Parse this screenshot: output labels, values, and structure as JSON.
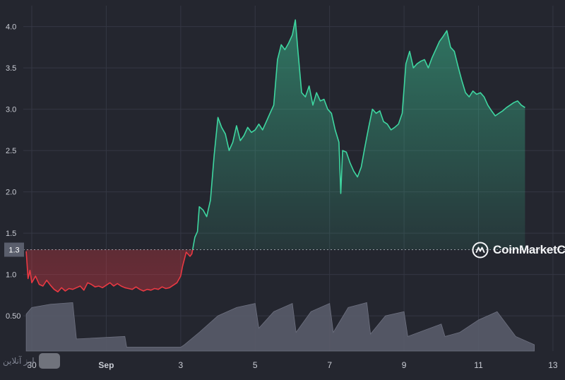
{
  "chart_data": {
    "type": "area",
    "title": "",
    "xlabel": "",
    "ylabel": "",
    "ylim": [
      0.38,
      4.25
    ],
    "x_ticks": [
      {
        "t": 0.0,
        "label": "30"
      },
      {
        "t": 2.0,
        "label": "Sep"
      },
      {
        "t": 4.0,
        "label": "3"
      },
      {
        "t": 6.0,
        "label": "5"
      },
      {
        "t": 8.0,
        "label": "7"
      },
      {
        "t": 10.0,
        "label": "9"
      },
      {
        "t": 12.0,
        "label": "11"
      },
      {
        "t": 14.0,
        "label": "13"
      }
    ],
    "y_ticks": [
      {
        "v": 4.0,
        "label": "4.0"
      },
      {
        "v": 3.5,
        "label": "3.5"
      },
      {
        "v": 3.0,
        "label": "3.0"
      },
      {
        "v": 2.5,
        "label": "2.5"
      },
      {
        "v": 2.0,
        "label": "2.0"
      },
      {
        "v": 1.5,
        "label": "1.5"
      },
      {
        "v": 1.0,
        "label": "1.0"
      },
      {
        "v": 0.5,
        "label": "0.50"
      }
    ],
    "reference_line": {
      "value": 1.3,
      "label": "1.3"
    },
    "grid": true,
    "colors": {
      "up": "#3ed6a0",
      "down": "#ea3943",
      "volume": "#5c5f6d",
      "background": "#24262f",
      "grid": "#343743",
      "text": "#c9ccd4"
    },
    "series": [
      {
        "values_kind": "price",
        "points": [
          [
            -0.15,
            1.28
          ],
          [
            -0.1,
            0.95
          ],
          [
            -0.05,
            1.05
          ],
          [
            0.0,
            0.9
          ],
          [
            0.1,
            0.98
          ],
          [
            0.2,
            0.88
          ],
          [
            0.3,
            0.86
          ],
          [
            0.4,
            0.93
          ],
          [
            0.5,
            0.87
          ],
          [
            0.6,
            0.82
          ],
          [
            0.7,
            0.79
          ],
          [
            0.8,
            0.84
          ],
          [
            0.9,
            0.8
          ],
          [
            1.0,
            0.83
          ],
          [
            1.1,
            0.82
          ],
          [
            1.2,
            0.84
          ],
          [
            1.3,
            0.86
          ],
          [
            1.4,
            0.81
          ],
          [
            1.5,
            0.9
          ],
          [
            1.6,
            0.88
          ],
          [
            1.7,
            0.85
          ],
          [
            1.8,
            0.86
          ],
          [
            1.9,
            0.84
          ],
          [
            2.0,
            0.87
          ],
          [
            2.1,
            0.9
          ],
          [
            2.2,
            0.86
          ],
          [
            2.3,
            0.89
          ],
          [
            2.4,
            0.86
          ],
          [
            2.5,
            0.84
          ],
          [
            2.6,
            0.83
          ],
          [
            2.7,
            0.82
          ],
          [
            2.8,
            0.85
          ],
          [
            2.9,
            0.82
          ],
          [
            3.0,
            0.8
          ],
          [
            3.1,
            0.82
          ],
          [
            3.2,
            0.81
          ],
          [
            3.3,
            0.83
          ],
          [
            3.4,
            0.82
          ],
          [
            3.5,
            0.85
          ],
          [
            3.6,
            0.83
          ],
          [
            3.7,
            0.84
          ],
          [
            3.8,
            0.87
          ],
          [
            3.9,
            0.9
          ],
          [
            4.0,
            0.98
          ],
          [
            4.05,
            1.1
          ],
          [
            4.15,
            1.27
          ],
          [
            4.25,
            1.22
          ],
          [
            4.3,
            1.25
          ],
          [
            4.38,
            1.45
          ],
          [
            4.45,
            1.52
          ],
          [
            4.5,
            1.82
          ],
          [
            4.6,
            1.78
          ],
          [
            4.7,
            1.7
          ],
          [
            4.8,
            1.9
          ],
          [
            4.9,
            2.45
          ],
          [
            5.0,
            2.9
          ],
          [
            5.1,
            2.78
          ],
          [
            5.2,
            2.7
          ],
          [
            5.3,
            2.5
          ],
          [
            5.4,
            2.6
          ],
          [
            5.5,
            2.8
          ],
          [
            5.6,
            2.62
          ],
          [
            5.7,
            2.68
          ],
          [
            5.8,
            2.78
          ],
          [
            5.9,
            2.72
          ],
          [
            6.0,
            2.75
          ],
          [
            6.1,
            2.82
          ],
          [
            6.2,
            2.75
          ],
          [
            6.3,
            2.85
          ],
          [
            6.4,
            2.95
          ],
          [
            6.5,
            3.05
          ],
          [
            6.6,
            3.6
          ],
          [
            6.7,
            3.78
          ],
          [
            6.8,
            3.72
          ],
          [
            6.9,
            3.8
          ],
          [
            7.0,
            3.9
          ],
          [
            7.08,
            4.08
          ],
          [
            7.15,
            3.7
          ],
          [
            7.25,
            3.2
          ],
          [
            7.35,
            3.15
          ],
          [
            7.45,
            3.28
          ],
          [
            7.55,
            3.05
          ],
          [
            7.65,
            3.2
          ],
          [
            7.75,
            3.1
          ],
          [
            7.85,
            3.12
          ],
          [
            7.95,
            3.0
          ],
          [
            8.05,
            2.95
          ],
          [
            8.15,
            2.75
          ],
          [
            8.25,
            2.6
          ],
          [
            8.3,
            1.98
          ],
          [
            8.35,
            2.5
          ],
          [
            8.45,
            2.48
          ],
          [
            8.55,
            2.35
          ],
          [
            8.65,
            2.25
          ],
          [
            8.75,
            2.18
          ],
          [
            8.85,
            2.3
          ],
          [
            8.95,
            2.55
          ],
          [
            9.05,
            2.78
          ],
          [
            9.15,
            3.0
          ],
          [
            9.25,
            2.95
          ],
          [
            9.35,
            2.98
          ],
          [
            9.45,
            2.85
          ],
          [
            9.55,
            2.82
          ],
          [
            9.65,
            2.75
          ],
          [
            9.75,
            2.78
          ],
          [
            9.85,
            2.82
          ],
          [
            9.95,
            2.95
          ],
          [
            10.05,
            3.55
          ],
          [
            10.15,
            3.7
          ],
          [
            10.25,
            3.5
          ],
          [
            10.35,
            3.55
          ],
          [
            10.45,
            3.58
          ],
          [
            10.55,
            3.6
          ],
          [
            10.65,
            3.5
          ],
          [
            10.75,
            3.62
          ],
          [
            10.85,
            3.72
          ],
          [
            10.95,
            3.82
          ],
          [
            11.05,
            3.88
          ],
          [
            11.15,
            3.95
          ],
          [
            11.25,
            3.75
          ],
          [
            11.35,
            3.7
          ],
          [
            11.45,
            3.52
          ],
          [
            11.55,
            3.35
          ],
          [
            11.65,
            3.2
          ],
          [
            11.75,
            3.15
          ],
          [
            11.85,
            3.22
          ],
          [
            11.95,
            3.18
          ],
          [
            12.05,
            3.2
          ],
          [
            12.15,
            3.15
          ],
          [
            12.25,
            3.05
          ],
          [
            12.35,
            2.98
          ],
          [
            12.45,
            2.92
          ],
          [
            12.55,
            2.95
          ],
          [
            12.65,
            2.98
          ],
          [
            12.75,
            3.02
          ],
          [
            12.85,
            3.05
          ],
          [
            12.95,
            3.08
          ],
          [
            13.05,
            3.1
          ],
          [
            13.15,
            3.05
          ],
          [
            13.25,
            3.02
          ]
        ]
      },
      {
        "values_kind": "volume",
        "points": [
          [
            -0.15,
            0.52
          ],
          [
            0.0,
            0.6
          ],
          [
            0.5,
            0.64
          ],
          [
            1.1,
            0.66
          ],
          [
            1.2,
            0.22
          ],
          [
            2.5,
            0.25
          ],
          [
            2.55,
            0.12
          ],
          [
            4.0,
            0.12
          ],
          [
            4.1,
            0.15
          ],
          [
            4.5,
            0.3
          ],
          [
            5.0,
            0.5
          ],
          [
            5.5,
            0.6
          ],
          [
            6.0,
            0.65
          ],
          [
            6.1,
            0.35
          ],
          [
            6.5,
            0.55
          ],
          [
            7.0,
            0.65
          ],
          [
            7.1,
            0.3
          ],
          [
            7.5,
            0.55
          ],
          [
            8.0,
            0.65
          ],
          [
            8.1,
            0.3
          ],
          [
            8.5,
            0.6
          ],
          [
            9.0,
            0.66
          ],
          [
            9.1,
            0.28
          ],
          [
            9.5,
            0.5
          ],
          [
            10.0,
            0.55
          ],
          [
            10.1,
            0.25
          ],
          [
            11.0,
            0.4
          ],
          [
            11.1,
            0.25
          ],
          [
            11.5,
            0.3
          ],
          [
            12.0,
            0.45
          ],
          [
            12.5,
            0.55
          ],
          [
            13.0,
            0.25
          ],
          [
            13.5,
            0.15
          ]
        ]
      }
    ]
  },
  "ui": {
    "watermark_text": "CoinMarketCap",
    "corner_watermark_text": "ارز آنلاین"
  }
}
